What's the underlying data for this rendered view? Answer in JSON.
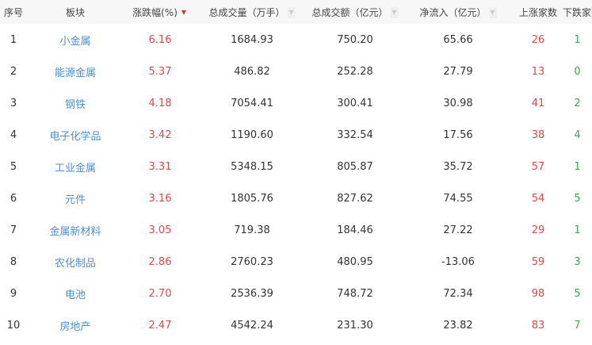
{
  "columns": [
    {
      "label": "序号"
    },
    {
      "label": "板块"
    },
    {
      "label": "涨跌幅(%)",
      "sort": "desc"
    },
    {
      "label": "总成交量（万手）",
      "sort": "none"
    },
    {
      "label": "总成交额（亿元）",
      "sort": "none"
    },
    {
      "label": "净流入（亿元）",
      "sort": "none"
    },
    {
      "label": "上涨家数"
    },
    {
      "label": "下跌家数"
    }
  ],
  "rows": [
    [
      "1",
      "小金属",
      "6.16",
      "1684.93",
      "750.20",
      "65.66",
      "26",
      "1"
    ],
    [
      "2",
      "能源金属",
      "5.37",
      "486.82",
      "252.28",
      "27.79",
      "13",
      "0"
    ],
    [
      "3",
      "钢铁",
      "4.18",
      "7054.41",
      "300.41",
      "30.98",
      "41",
      "2"
    ],
    [
      "4",
      "电子化学品",
      "3.42",
      "1190.60",
      "332.54",
      "17.56",
      "38",
      "4"
    ],
    [
      "5",
      "工业金属",
      "3.31",
      "5348.15",
      "805.87",
      "35.72",
      "57",
      "1"
    ],
    [
      "6",
      "元件",
      "3.16",
      "1805.76",
      "827.62",
      "74.55",
      "54",
      "5"
    ],
    [
      "7",
      "金属新材料",
      "3.05",
      "719.38",
      "184.46",
      "27.22",
      "29",
      "1"
    ],
    [
      "8",
      "农化制品",
      "2.86",
      "2760.23",
      "480.95",
      "-13.06",
      "59",
      "3"
    ],
    [
      "9",
      "电池",
      "2.70",
      "2536.39",
      "748.72",
      "72.34",
      "98",
      "5"
    ],
    [
      "10",
      "房地产",
      "2.47",
      "4542.24",
      "231.30",
      "23.82",
      "83",
      "7"
    ]
  ],
  "colors": {
    "up": "#e04848",
    "down": "#3aa654",
    "link": "#4a8fd8"
  }
}
